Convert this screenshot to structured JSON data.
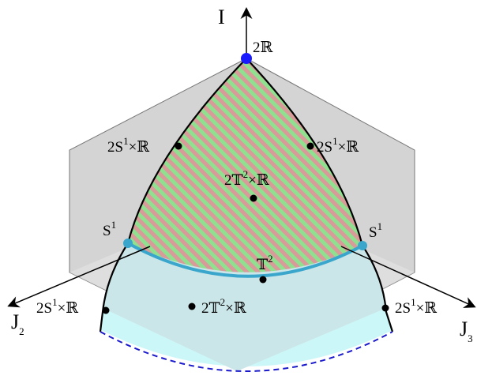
{
  "axes": {
    "vertical": "I",
    "left_base": "J",
    "left_sub": "2",
    "right_base": "J",
    "right_sub": "3"
  },
  "labels": {
    "top": {
      "text": "2ℝ"
    },
    "upper_left_edge": {
      "pre": "2S",
      "sup": "1",
      "post": "×ℝ"
    },
    "upper_right_edge": {
      "pre": "2S",
      "sup": "1",
      "post": "×ℝ"
    },
    "center_upper": {
      "pre": "2𝕋",
      "sup": "2",
      "post": "×ℝ"
    },
    "left_corner": {
      "pre": "S",
      "sup": "1"
    },
    "right_corner": {
      "pre": "S",
      "sup": "1"
    },
    "bottom_arc": {
      "pre": "𝕋",
      "sup": "2"
    },
    "center_lower": {
      "pre": "2𝕋",
      "sup": "2",
      "post": "×ℝ"
    },
    "lower_left_edge": {
      "pre": "2S",
      "sup": "1",
      "post": "×ℝ"
    },
    "lower_right_edge": {
      "pre": "2S",
      "sup": "1",
      "post": "×ℝ"
    }
  },
  "colors": {
    "hexagon_fill": "#d4d4d4",
    "stripe_green": "#8fe08f",
    "stripe_pink": "#d99a9a",
    "lower_region": "#cbe6e8",
    "outer_band": "#ccf7f8",
    "arc_blue": "#3aa6cc",
    "top_point": "#1a1aff",
    "dashed_arc": "#1a1acc"
  }
}
